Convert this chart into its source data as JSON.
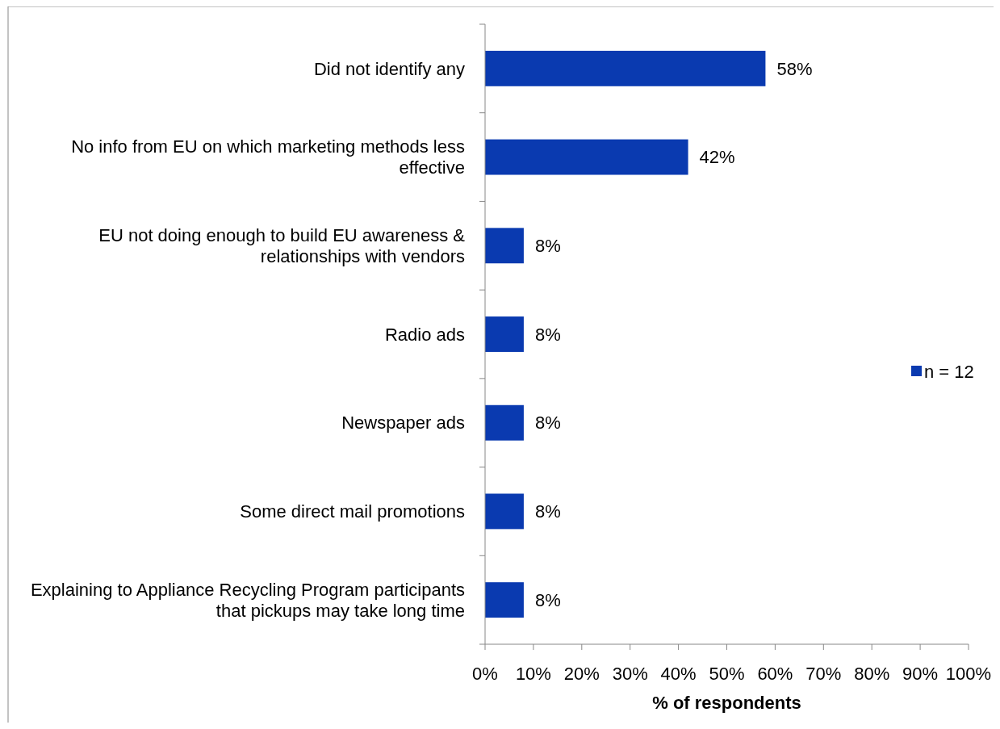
{
  "chart_data": {
    "type": "bar",
    "orientation": "horizontal",
    "categories": [
      "Did not identify any",
      "No info from EU on which marketing methods less effective",
      "EU not doing enough to build EU awareness & relationships with vendors",
      "Radio ads",
      "Newspaper ads",
      "Some direct mail promotions",
      "Explaining to Appliance Recycling Program participants that pickups may take long time"
    ],
    "series": [
      {
        "name": "n = 12",
        "color": "#0a3ab0",
        "values": [
          58,
          42,
          8,
          8,
          8,
          8,
          8
        ],
        "value_labels": [
          "58%",
          "42%",
          "8%",
          "8%",
          "8%",
          "8%",
          "8%"
        ]
      }
    ],
    "xlabel": "% of respondents",
    "xlim": [
      0,
      100
    ],
    "xticks": [
      {
        "value": 0,
        "label": "0%"
      },
      {
        "value": 10,
        "label": "10%"
      },
      {
        "value": 20,
        "label": "20%"
      },
      {
        "value": 30,
        "label": "30%"
      },
      {
        "value": 40,
        "label": "40%"
      },
      {
        "value": 50,
        "label": "50%"
      },
      {
        "value": 60,
        "label": "60%"
      },
      {
        "value": 70,
        "label": "70%"
      },
      {
        "value": 80,
        "label": "80%"
      },
      {
        "value": 90,
        "label": "90%"
      },
      {
        "value": 100,
        "label": "100%"
      }
    ],
    "legend": "right",
    "grid": false
  }
}
